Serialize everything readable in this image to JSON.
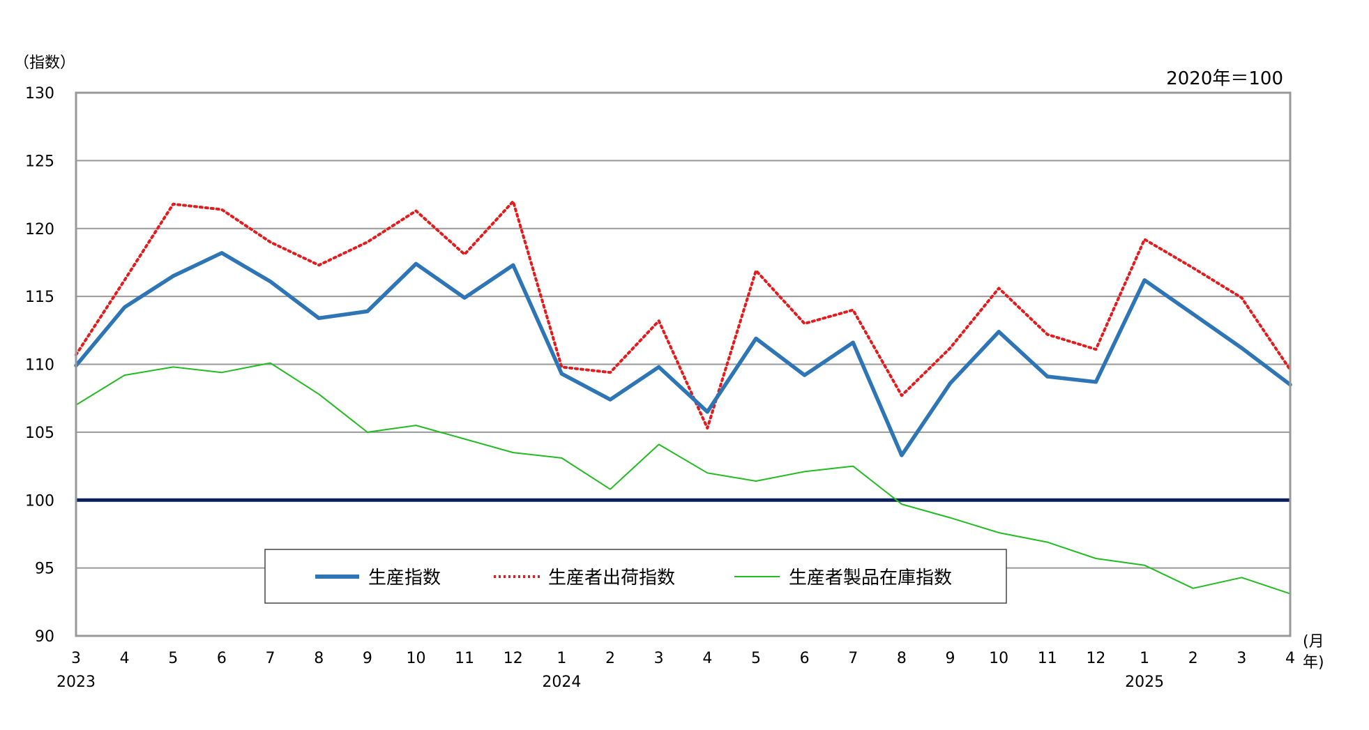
{
  "chart_data": {
    "type": "line",
    "y_unit_label": "（指数）",
    "base_note": "2020年＝100",
    "x_unit_label_top": "(月",
    "x_unit_label_bottom": "年)",
    "ylim": [
      90,
      130
    ],
    "y_ticks": [
      90,
      95,
      100,
      105,
      110,
      115,
      120,
      125,
      130
    ],
    "reference_line": 100,
    "grid": true,
    "legend_position": "bottom-center",
    "categories": [
      "3",
      "4",
      "5",
      "6",
      "7",
      "8",
      "9",
      "10",
      "11",
      "12",
      "1",
      "2",
      "3",
      "4",
      "5",
      "6",
      "7",
      "8",
      "9",
      "10",
      "11",
      "12",
      "1",
      "2",
      "3",
      "4"
    ],
    "year_labels": [
      {
        "index": 0,
        "label": "2023"
      },
      {
        "index": 10,
        "label": "2024"
      },
      {
        "index": 22,
        "label": "2025"
      }
    ],
    "series": [
      {
        "name": "生産指数",
        "color": "#2e75b6",
        "style": "solid-thick",
        "values": [
          109.9,
          114.2,
          116.5,
          118.2,
          116.1,
          113.4,
          113.9,
          117.4,
          114.9,
          117.3,
          109.3,
          107.4,
          109.8,
          106.5,
          111.9,
          109.2,
          111.6,
          103.3,
          108.6,
          112.4,
          109.1,
          108.7,
          116.2,
          113.7,
          111.2,
          108.5
        ]
      },
      {
        "name": "生産者出荷指数",
        "color": "#e41a1c",
        "style": "dotted",
        "values": [
          110.7,
          116.2,
          121.8,
          121.4,
          119.0,
          117.3,
          119.0,
          121.3,
          118.1,
          122.0,
          109.8,
          109.4,
          113.2,
          105.3,
          116.9,
          113.0,
          114.0,
          107.7,
          111.2,
          115.6,
          112.2,
          111.1,
          119.2,
          117.1,
          114.9,
          109.6
        ]
      },
      {
        "name": "生産者製品在庫指数",
        "color": "#22bb22",
        "style": "solid-thin",
        "values": [
          107.0,
          109.2,
          109.8,
          109.4,
          110.1,
          107.8,
          105.0,
          105.5,
          104.5,
          103.5,
          103.1,
          100.8,
          104.1,
          102.0,
          101.4,
          102.1,
          102.5,
          99.7,
          98.7,
          97.6,
          96.9,
          95.7,
          95.2,
          93.5,
          94.3,
          93.1
        ]
      }
    ]
  }
}
